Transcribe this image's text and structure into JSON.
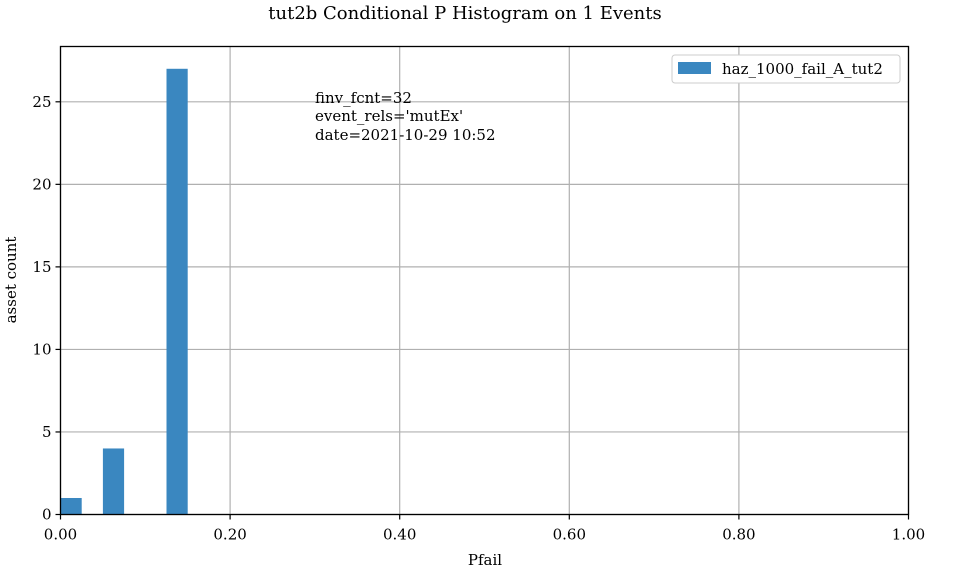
{
  "chart_data": {
    "type": "bar",
    "title": "tut2b Conditional P Histogram on 1 Events",
    "xlabel": "Pfail",
    "ylabel": "asset count",
    "xlim": [
      0,
      1
    ],
    "ylim": [
      0,
      28.35
    ],
    "xticks": [
      {
        "value": 0.0,
        "label": "0.00"
      },
      {
        "value": 0.2,
        "label": "0.20"
      },
      {
        "value": 0.4,
        "label": "0.40"
      },
      {
        "value": 0.6,
        "label": "0.60"
      },
      {
        "value": 0.8,
        "label": "0.80"
      },
      {
        "value": 1.0,
        "label": "1.00"
      }
    ],
    "yticks": [
      {
        "value": 0,
        "label": "0"
      },
      {
        "value": 5,
        "label": "5"
      },
      {
        "value": 10,
        "label": "10"
      },
      {
        "value": 15,
        "label": "15"
      },
      {
        "value": 20,
        "label": "20"
      },
      {
        "value": 25,
        "label": "25"
      }
    ],
    "grid": true,
    "legend_position": "top-right",
    "series": [
      {
        "name": "haz_1000_fail_A_tut2",
        "color": "#3a87c0",
        "bins": [
          {
            "x0": 0.0,
            "x1": 0.025,
            "count": 1
          },
          {
            "x0": 0.05,
            "x1": 0.075,
            "count": 4
          },
          {
            "x0": 0.125,
            "x1": 0.15,
            "count": 27
          }
        ]
      }
    ],
    "annotation_lines": [
      "finv_fcnt=32",
      "event_rels='mutEx'",
      "date=2021-10-29 10:52"
    ]
  }
}
